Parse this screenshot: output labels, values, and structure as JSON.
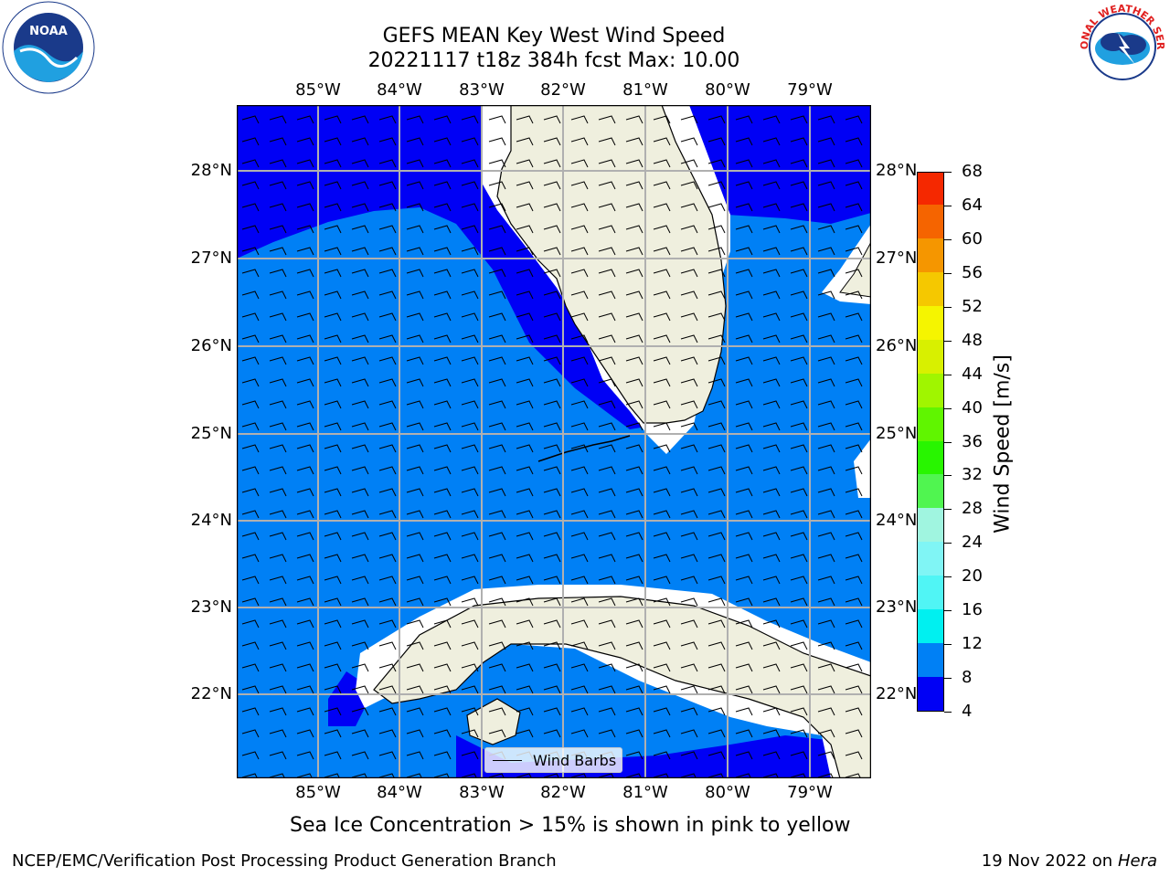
{
  "title_line1": "GEFS MEAN Key West Wind Speed",
  "title_line2": "20221117 t18z 384h fcst   Max: 10.00",
  "subtitle": "Sea Ice Concentration > 15% is shown in pink to yellow",
  "footer_left": "NCEP/EMC/Verification Post Processing Product Generation Branch",
  "footer_date": "19 Nov 2022 on",
  "footer_host": "Hera",
  "map": {
    "lon_labels": [
      "85°W",
      "84°W",
      "83°W",
      "82°W",
      "81°W",
      "80°W",
      "79°W"
    ],
    "lat_labels": [
      "28°N",
      "27°N",
      "26°N",
      "25°N",
      "24°N",
      "23°N",
      "22°N"
    ],
    "land_color": "#efefde",
    "band_4_8_color": "#0000f5",
    "band_8_12_color": "#0080f5",
    "grid_color": "#b0b0b0"
  },
  "legend": {
    "wind_barbs_label": "Wind Barbs"
  },
  "colorbar": {
    "title": "Wind Speed [m/s]",
    "ticks": [
      "4",
      "8",
      "12",
      "16",
      "20",
      "24",
      "28",
      "32",
      "36",
      "40",
      "44",
      "48",
      "52",
      "56",
      "60",
      "64",
      "68"
    ],
    "colors": [
      "#0000f5",
      "#0080f5",
      "#00f0f0",
      "#50f5f5",
      "#80f5f5",
      "#a0f5e0",
      "#50f550",
      "#28f500",
      "#60f500",
      "#a0f500",
      "#d8f000",
      "#f5f500",
      "#f5c800",
      "#f59600",
      "#f56400",
      "#f52800"
    ]
  },
  "logos": {
    "noaa": "NOAA",
    "nws": "NATIONAL WEATHER SERVICE"
  }
}
